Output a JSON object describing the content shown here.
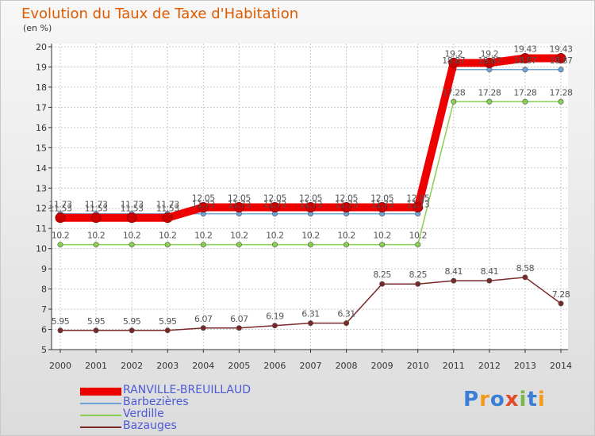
{
  "title": "Evolution du Taux de Taxe d'Habitation",
  "unit_label": "(en %)",
  "logo": {
    "text": "Proxiti",
    "colors": [
      "#3a7fd5",
      "#f29a1c",
      "#3a7fd5",
      "#e44a2a",
      "#7ab648",
      "#3a7fd5",
      "#f29a1c"
    ]
  },
  "chart_data": {
    "type": "line",
    "title": "Evolution du Taux de Taxe d'Habitation",
    "ylabel": "(en %)",
    "x": [
      "2000",
      "2001",
      "2002",
      "2003",
      "2004",
      "2005",
      "2006",
      "2007",
      "2008",
      "2009",
      "2010",
      "2011",
      "2012",
      "2013",
      "2014"
    ],
    "ylim": [
      5,
      20
    ],
    "yticks": [
      5,
      6,
      7,
      8,
      9,
      10,
      11,
      12,
      13,
      14,
      15,
      16,
      17,
      18,
      19,
      20
    ],
    "grid": true,
    "legend_position": "bottom-left",
    "series": [
      {
        "name": "RANVILLE-BREUILLAUD",
        "color": "#ee0000",
        "width": 10,
        "values": [
          11.53,
          11.53,
          11.53,
          11.53,
          12.05,
          12.05,
          12.05,
          12.05,
          12.05,
          12.05,
          12.05,
          19.2,
          19.2,
          19.43,
          19.43
        ],
        "labels": [
          "11.53",
          "11.53",
          "11.53",
          "11.53",
          "12.05",
          "12.05",
          "12.05",
          "12.05",
          "12.05",
          "12.05",
          "12.05",
          "19.2",
          "19.2",
          "19.43",
          "19.43"
        ]
      },
      {
        "name": "Barbezières",
        "color": "#6fa3d6",
        "width": 1.5,
        "values": [
          11.73,
          11.73,
          11.73,
          11.73,
          11.73,
          11.73,
          11.73,
          11.73,
          11.73,
          11.73,
          11.73,
          18.87,
          18.87,
          18.87,
          18.87
        ],
        "labels": [
          "11.73",
          "11.73",
          "11.73",
          "11.73",
          "11.73",
          "11.73",
          "11.73",
          "11.73",
          "11.73",
          "11.73",
          "11.73",
          "18.87",
          "18.87",
          "18.87",
          "18.87"
        ]
      },
      {
        "name": "Verdille",
        "color": "#88d050",
        "width": 1.5,
        "values": [
          10.2,
          10.2,
          10.2,
          10.2,
          10.2,
          10.2,
          10.2,
          10.2,
          10.2,
          10.2,
          10.2,
          17.28,
          17.28,
          17.28,
          17.28
        ],
        "labels": [
          "10.2",
          "10.2",
          "10.2",
          "10.2",
          "10.2",
          "10.2",
          "10.2",
          "10.2",
          "10.2",
          "10.2",
          "10.2",
          "17.28",
          "17.28",
          "17.28",
          "17.28"
        ]
      },
      {
        "name": "Bazauges",
        "color": "#7a2828",
        "width": 1.5,
        "values": [
          5.95,
          5.95,
          5.95,
          5.95,
          6.07,
          6.07,
          6.19,
          6.31,
          6.31,
          8.25,
          8.25,
          8.41,
          8.41,
          8.58,
          7.28
        ],
        "labels": [
          "5.95",
          "5.95",
          "5.95",
          "5.95",
          "6.07",
          "6.07",
          "6.19",
          "6.31",
          "6.31",
          "8.25",
          "8.25",
          "8.41",
          "8.41",
          "8.58",
          "7.28"
        ]
      }
    ]
  }
}
